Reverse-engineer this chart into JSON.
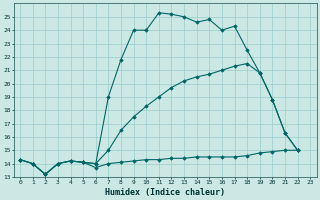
{
  "xlabel": "Humidex (Indice chaleur)",
  "background_color": "#cce8e4",
  "grid_color": "#99cccc",
  "line_color": "#006666",
  "xlim": [
    -0.5,
    23.5
  ],
  "ylim": [
    13,
    26
  ],
  "yticks": [
    13,
    14,
    15,
    16,
    17,
    18,
    19,
    20,
    21,
    22,
    23,
    24,
    25
  ],
  "xticks": [
    0,
    1,
    2,
    3,
    4,
    5,
    6,
    7,
    8,
    9,
    10,
    11,
    12,
    13,
    14,
    15,
    16,
    17,
    18,
    19,
    20,
    21,
    22,
    23
  ],
  "line1_x": [
    0,
    1,
    2,
    3,
    4,
    5,
    6,
    7,
    8,
    9,
    10,
    11,
    12,
    13,
    14,
    15,
    16,
    17,
    18,
    19,
    20,
    21,
    22
  ],
  "line1_y": [
    14.3,
    14.0,
    13.2,
    14.0,
    14.2,
    14.1,
    13.7,
    14.0,
    14.1,
    14.2,
    14.3,
    14.3,
    14.4,
    14.4,
    14.5,
    14.5,
    14.5,
    14.5,
    14.6,
    14.8,
    14.9,
    15.0,
    15.0
  ],
  "line2_x": [
    0,
    1,
    2,
    3,
    4,
    5,
    6,
    7,
    8,
    9,
    10,
    11,
    12,
    13,
    14,
    15,
    16,
    17,
    18,
    19,
    20,
    21,
    22
  ],
  "line2_y": [
    14.3,
    14.0,
    13.2,
    14.0,
    14.2,
    14.1,
    14.0,
    15.0,
    16.5,
    17.5,
    18.3,
    19.0,
    19.7,
    20.2,
    20.5,
    20.7,
    21.0,
    21.3,
    21.5,
    20.8,
    18.8,
    16.3,
    15.0
  ],
  "line3_x": [
    0,
    1,
    2,
    3,
    4,
    5,
    6,
    7,
    8,
    9,
    10,
    11,
    12,
    13,
    14,
    15,
    16,
    17,
    18,
    19,
    20,
    21,
    22
  ],
  "line3_y": [
    14.3,
    14.0,
    13.2,
    14.0,
    14.2,
    14.1,
    14.0,
    19.0,
    21.8,
    24.0,
    24.0,
    25.3,
    25.2,
    25.0,
    24.6,
    24.8,
    24.0,
    24.3,
    22.5,
    20.8,
    18.8,
    16.3,
    15.0
  ]
}
